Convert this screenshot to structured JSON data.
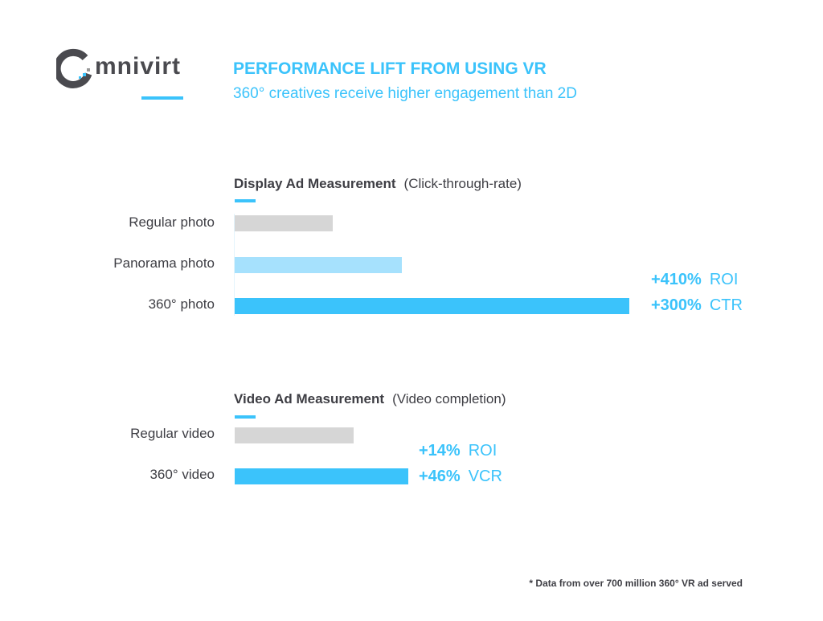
{
  "logo": {
    "text": "mnivirt",
    "brand": "Omnivirt"
  },
  "header": {
    "title": "PERFORMANCE LIFT FROM USING VR",
    "subtitle": "360° creatives receive higher engagement than 2D"
  },
  "colors": {
    "accent": "#3bc3fb",
    "light": "#a6e1fd",
    "gray": "#d6d6d6",
    "text": "#3e3e44"
  },
  "chart_data": [
    {
      "type": "bar",
      "title": "Display Ad Measurement",
      "subtitle": "(Click-through-rate)",
      "categories": [
        "Regular photo",
        "Panorama photo",
        "360° photo"
      ],
      "values": [
        24.8,
        42.4,
        100
      ],
      "value_units": "relative % of max bar",
      "annotations": [
        {
          "value": "+410%",
          "metric": "ROI"
        },
        {
          "value": "+300%",
          "metric": "CTR"
        }
      ]
    },
    {
      "type": "bar",
      "title": "Video Ad Measurement",
      "subtitle": "(Video completion)",
      "categories": [
        "Regular video",
        "360° video"
      ],
      "values": [
        30.1,
        44.0
      ],
      "value_units": "relative % of max bar",
      "annotations": [
        {
          "value": "+14%",
          "metric": "ROI"
        },
        {
          "value": "+46%",
          "metric": "VCR"
        }
      ]
    }
  ],
  "footnote": "* Data from over 700 million 360° VR ad served"
}
